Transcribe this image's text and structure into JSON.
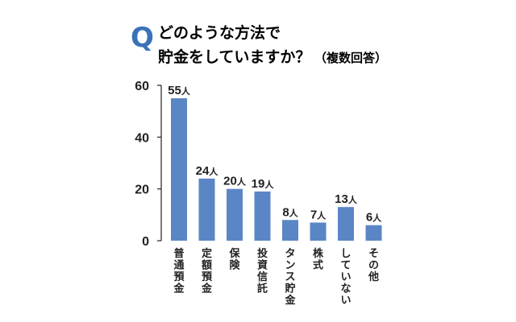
{
  "question": {
    "mark": "Q",
    "line1": "どのような方法で",
    "line2": "貯金をしていますか？",
    "note": "（複数回答）"
  },
  "colors": {
    "bar": "#5b86c5",
    "q_mark": "#3a72b8",
    "text": "#222222",
    "axis": "#222222"
  },
  "chart_data": {
    "type": "bar",
    "title": "どのような方法で貯金をしていますか？（複数回答）",
    "categories": [
      "普通預金",
      "定額預金",
      "保険",
      "投資信託",
      "タンス貯金",
      "株式",
      "していない",
      "その他"
    ],
    "values": [
      55,
      24,
      20,
      19,
      8,
      7,
      13,
      6
    ],
    "data_labels": [
      "55人",
      "24人",
      "20人",
      "19人",
      "8人",
      "7人",
      "13人",
      "6人"
    ],
    "unit": "人",
    "yticks": [
      0,
      20,
      40,
      60
    ],
    "ylim": [
      0,
      60
    ],
    "grid": false,
    "legend": "none"
  }
}
